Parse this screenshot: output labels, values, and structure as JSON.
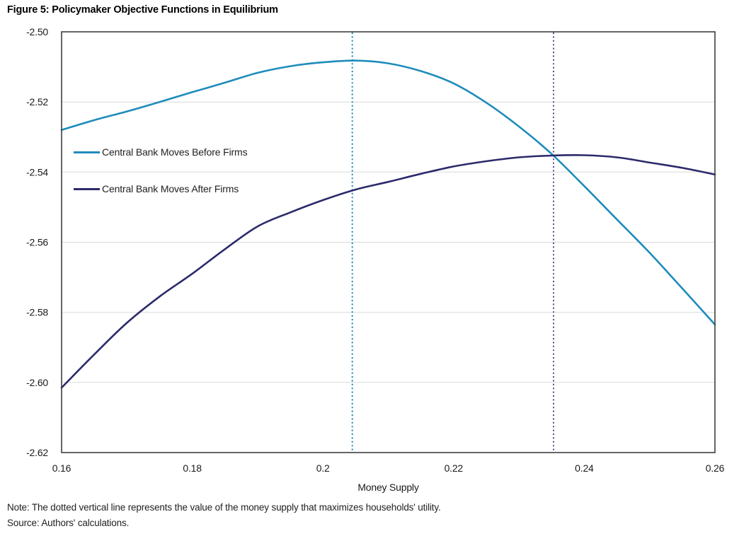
{
  "title": "Figure 5: Policymaker Objective Functions in Equilibrium",
  "note": "Note: The dotted vertical line represents the value of the money supply that maximizes households' utility.",
  "source": "Source: Authors' calculations.",
  "chart_data": {
    "type": "line",
    "title": "Figure 5: Policymaker Objective Functions in Equilibrium",
    "xlabel": "Money Supply",
    "ylabel": "",
    "xlim": [
      0.16,
      0.26
    ],
    "ylim": [
      -2.62,
      -2.5
    ],
    "grid": "horizontal-light-gray",
    "legend_position": "inside-upper-left",
    "x_ticks": [
      "0.16",
      "0.18",
      "0.2",
      "0.22",
      "0.24",
      "0.26"
    ],
    "x_tick_values": [
      0.16,
      0.18,
      0.2,
      0.22,
      0.24,
      0.26
    ],
    "y_ticks": [
      "-2.50",
      "-2.52",
      "-2.54",
      "-2.56",
      "-2.58",
      "-2.60",
      "-2.62"
    ],
    "y_tick_values": [
      -2.5,
      -2.52,
      -2.54,
      -2.56,
      -2.58,
      -2.6,
      -2.62
    ],
    "x": [
      0.16,
      0.165,
      0.17,
      0.175,
      0.18,
      0.185,
      0.19,
      0.195,
      0.2,
      0.205,
      0.21,
      0.215,
      0.22,
      0.225,
      0.23,
      0.235,
      0.24,
      0.245,
      0.25,
      0.255,
      0.26
    ],
    "series": [
      {
        "name": "Central Bank Moves Before Firms",
        "color": "#1e8cbc",
        "values": [
          -2.528,
          -2.5252,
          -2.5227,
          -2.52,
          -2.5172,
          -2.5145,
          -2.5117,
          -2.5098,
          -2.5087,
          -2.5082,
          -2.509,
          -2.5112,
          -2.5147,
          -2.5202,
          -2.527,
          -2.5348,
          -2.544,
          -2.5535,
          -2.563,
          -2.5732,
          -2.5835
        ]
      },
      {
        "name": "Central Bank Moves After Firms",
        "color": "#2b2a6b",
        "values": [
          -2.6015,
          -2.592,
          -2.583,
          -2.5755,
          -2.569,
          -2.562,
          -2.5555,
          -2.5515,
          -2.548,
          -2.545,
          -2.5428,
          -2.5405,
          -2.5384,
          -2.5369,
          -2.5358,
          -2.5353,
          -2.5352,
          -2.5358,
          -2.5373,
          -2.5388,
          -2.5407
        ]
      }
    ],
    "vlines": [
      {
        "x": 0.2045,
        "style": "dotted",
        "color": "#1e8cbc"
      },
      {
        "x": 0.2353,
        "style": "dotted",
        "color": "#55549b"
      }
    ],
    "colors": {
      "grid": "#d9d9d9",
      "plot_border": "#3f3f3f",
      "tick_text": "#1a1a1a"
    }
  }
}
